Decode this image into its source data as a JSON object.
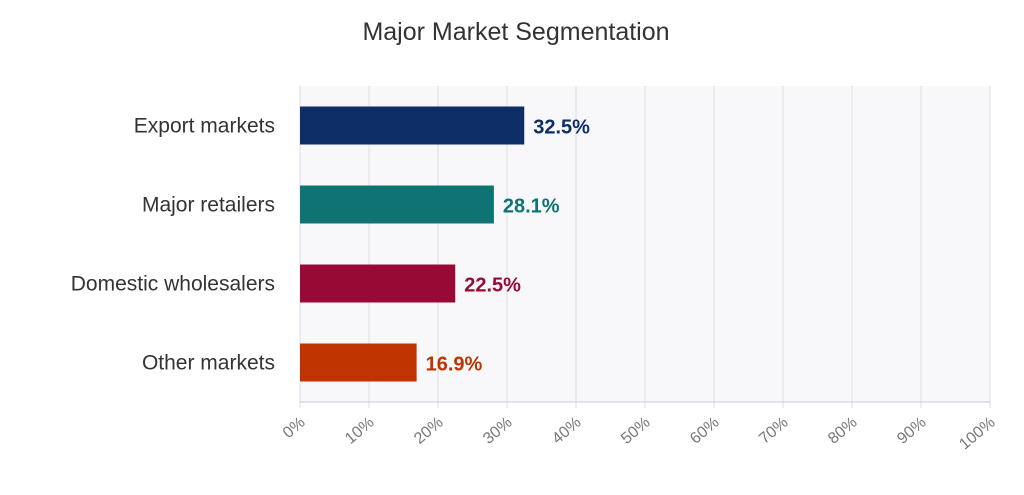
{
  "chart_data": {
    "type": "bar",
    "orientation": "horizontal",
    "title": "Major Market Segmentation",
    "xlabel": "",
    "ylabel": "",
    "categories": [
      "Export markets",
      "Major retailers",
      "Domestic wholesalers",
      "Other markets"
    ],
    "values": [
      32.5,
      28.1,
      22.5,
      16.9
    ],
    "value_labels": [
      "32.5%",
      "28.1%",
      "22.5%",
      "16.9%"
    ],
    "colors": [
      "#0d2d66",
      "#0e7372",
      "#980a35",
      "#bf3300"
    ],
    "xlim": [
      0,
      100
    ],
    "x_ticks": [
      0,
      10,
      20,
      30,
      40,
      50,
      60,
      70,
      80,
      90,
      100
    ],
    "x_tick_labels": [
      "0%",
      "10%",
      "20%",
      "30%",
      "40%",
      "50%",
      "60%",
      "70%",
      "80%",
      "90%",
      "100%"
    ],
    "grid": true,
    "legend": "none",
    "plot_background": "#f8f8fa"
  }
}
